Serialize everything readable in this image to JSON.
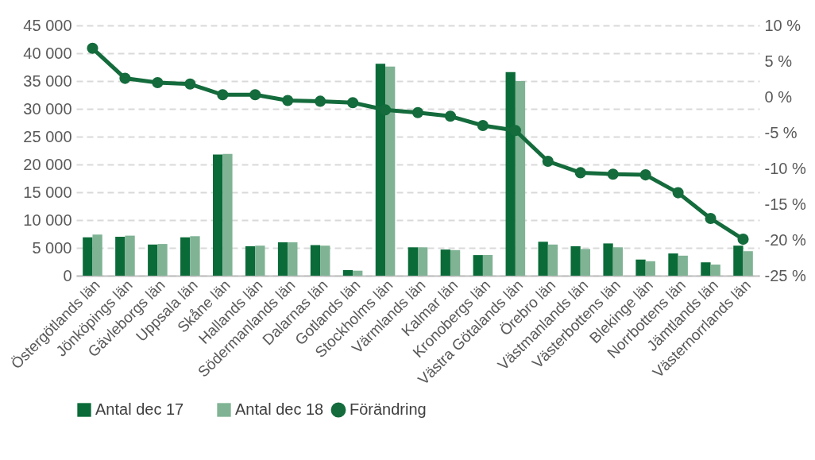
{
  "chart_data": {
    "type": "bar",
    "categories": [
      "Östergötlands län",
      "Jönköpings län",
      "Gävleborgs län",
      "Uppsala län",
      "Skåne län",
      "Hallands län",
      "Södermanlands län",
      "Dalarnas län",
      "Gotlands län",
      "Stockholms län",
      "Värmlands län",
      "Kalmar län",
      "Kronobergs län",
      "Västra Götalands län",
      "Örebro län",
      "Västmanlands län",
      "Västerbottens län",
      "Blekinge län",
      "Norrbottens län",
      "Jämtlands län",
      "Västernorrlands län"
    ],
    "series": [
      {
        "name": "Antal dec 17",
        "color": "#0a6b38",
        "values": [
          6900,
          7000,
          5600,
          6900,
          21800,
          5300,
          6000,
          5500,
          1000,
          38100,
          5100,
          4700,
          3700,
          36600,
          6100,
          5300,
          5800,
          2900,
          4000,
          2400,
          5400
        ]
      },
      {
        "name": "Antal dec 18",
        "color": "#7fb394",
        "values": [
          7400,
          7200,
          5700,
          7100,
          21900,
          5400,
          6000,
          5400,
          900,
          37600,
          5100,
          4600,
          3700,
          35000,
          5600,
          4800,
          5100,
          2600,
          3600,
          2000,
          4400
        ]
      },
      {
        "name": "Förändring",
        "type": "line",
        "axis": "y2",
        "color": "#146b3c",
        "values": [
          6.8,
          2.6,
          2.0,
          1.8,
          0.3,
          0.3,
          -0.5,
          -0.6,
          -0.8,
          -1.8,
          -2.2,
          -2.7,
          -4.0,
          -4.7,
          -9.0,
          -10.6,
          -10.8,
          -10.9,
          -13.4,
          -17.0,
          -19.9
        ]
      }
    ],
    "ylim": [
      0,
      45000
    ],
    "yticks": [
      {
        "value": 0,
        "label": "0"
      },
      {
        "value": 5000,
        "label": "5 000"
      },
      {
        "value": 10000,
        "label": "10 000"
      },
      {
        "value": 15000,
        "label": "15 000"
      },
      {
        "value": 20000,
        "label": "20 000"
      },
      {
        "value": 25000,
        "label": "25 000"
      },
      {
        "value": 30000,
        "label": "30 000"
      },
      {
        "value": 35000,
        "label": "35 000"
      },
      {
        "value": 40000,
        "label": "40 000"
      },
      {
        "value": 45000,
        "label": "45 000"
      }
    ],
    "y2lim": [
      -25,
      10
    ],
    "y2ticks": [
      {
        "value": -25,
        "label": "-25 %"
      },
      {
        "value": -20,
        "label": "-20 %"
      },
      {
        "value": -15,
        "label": "-15 %"
      },
      {
        "value": -10,
        "label": "-10 %"
      },
      {
        "value": -5,
        "label": "-5 %"
      },
      {
        "value": 0,
        "label": "0 %"
      },
      {
        "value": 5,
        "label": "5 %"
      },
      {
        "value": 10,
        "label": "10 %"
      }
    ],
    "grid": "y",
    "legend": "bottom",
    "marker": "circle",
    "line_style": "solid"
  }
}
